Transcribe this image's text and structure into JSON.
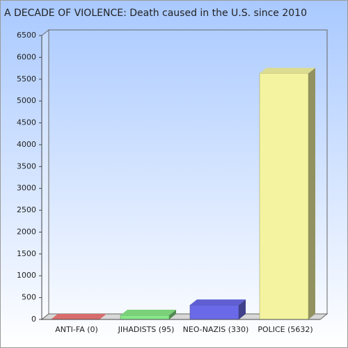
{
  "chart_data": {
    "type": "bar3d",
    "title": "A DECADE OF VIOLENCE: Death caused in the U.S. since 2010",
    "categories": [
      "ANTI-FA (0)",
      "JIHADISTS (95)",
      "NEO-NAZIS (330)",
      "POLICE (5632)"
    ],
    "values": [
      0,
      95,
      330,
      5632
    ],
    "colors": [
      "#f07878",
      "#88e888",
      "#6a6ae8",
      "#f4f4a0"
    ],
    "ylim": [
      0,
      6500
    ],
    "yticks": [
      0,
      500,
      1000,
      1500,
      2000,
      2500,
      3000,
      3500,
      4000,
      4500,
      5000,
      5500,
      6000,
      6500
    ]
  }
}
